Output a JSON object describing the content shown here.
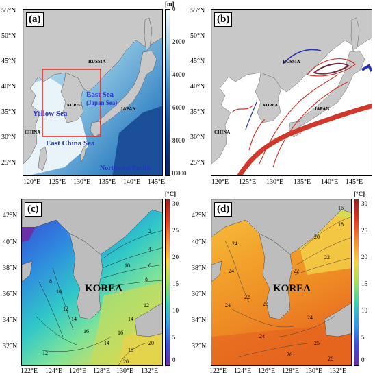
{
  "panels": {
    "a": {
      "tag": "(a)",
      "colorbar_unit": "[m]",
      "colorbar_ticks": [
        "0",
        "2000",
        "4000",
        "6000",
        "8000",
        "10000"
      ],
      "lat_ticks": [
        "55°N",
        "50°N",
        "45°N",
        "40°N",
        "35°N",
        "30°N",
        "25°N"
      ],
      "lon_ticks": [
        "120°E",
        "125°E",
        "130°E",
        "135°E",
        "140°E",
        "145°E"
      ],
      "labels": {
        "russia": "RUSSIA",
        "east_sea": "East Sea",
        "japan_sea": "(Japan Sea)",
        "korea": "KOREA",
        "japan": "JAPAN",
        "yellow_sea": "Yellow Sea",
        "china": "CHINA",
        "east_china_sea": "East China Sea",
        "northwest_pacific": "Northwest Pacific"
      },
      "colors": {
        "land": "#c8c8c8",
        "shallow": "#eaf4fb",
        "deep": "#0b3f8c",
        "box": "#e8281e",
        "label_blue": "#2a32c8"
      }
    },
    "b": {
      "tag": "(b)",
      "lat_ticks": [
        "55°N",
        "50°N",
        "45°N",
        "40°N",
        "35°N",
        "30°N",
        "25°N"
      ],
      "lon_ticks": [
        "120°E",
        "125°E",
        "130°E",
        "135°E",
        "140°E",
        "145°E"
      ],
      "labels": {
        "russia": "RUSSIA",
        "korea": "KOREA",
        "japan": "JAPAN",
        "china": "CHINA"
      },
      "colors": {
        "land": "#c8c8c8",
        "warm": "#d0382b",
        "cold": "#2835b4"
      }
    },
    "c": {
      "tag": "(c)",
      "colorbar_unit": "[°C]",
      "colorbar_ticks": [
        "30",
        "25",
        "20",
        "15",
        "10",
        "5",
        "0"
      ],
      "lat_ticks": [
        "42°N",
        "40°N",
        "38°N",
        "36°N",
        "34°N",
        "32°N"
      ],
      "lon_ticks": [
        "122°E",
        "124°E",
        "126°E",
        "128°E",
        "130°E",
        "132°E"
      ],
      "korea_label": "KOREA",
      "contour_labels": [
        "2",
        "4",
        "6",
        "8",
        "10",
        "12",
        "14",
        "16",
        "18",
        "20",
        "8",
        "10",
        "12",
        "14",
        "16",
        "12",
        "14",
        "20"
      ],
      "colors": {
        "land": "#bdbdbd"
      }
    },
    "d": {
      "tag": "(d)",
      "colorbar_unit": "[°C]",
      "colorbar_ticks": [
        "30",
        "25",
        "20",
        "15",
        "10",
        "5",
        "0"
      ],
      "lat_ticks": [
        "42°N",
        "40°N",
        "38°N",
        "36°N",
        "34°N",
        "32°N"
      ],
      "lon_ticks": [
        "122°E",
        "124°E",
        "126°E",
        "128°E",
        "130°E",
        "132°E"
      ],
      "korea_label": "KOREA",
      "contour_labels": [
        "16",
        "18",
        "20",
        "22",
        "24",
        "24",
        "24",
        "22",
        "23",
        "24",
        "25",
        "26",
        "26",
        "24",
        "22"
      ],
      "colors": {
        "land": "#bdbdbd"
      }
    }
  }
}
